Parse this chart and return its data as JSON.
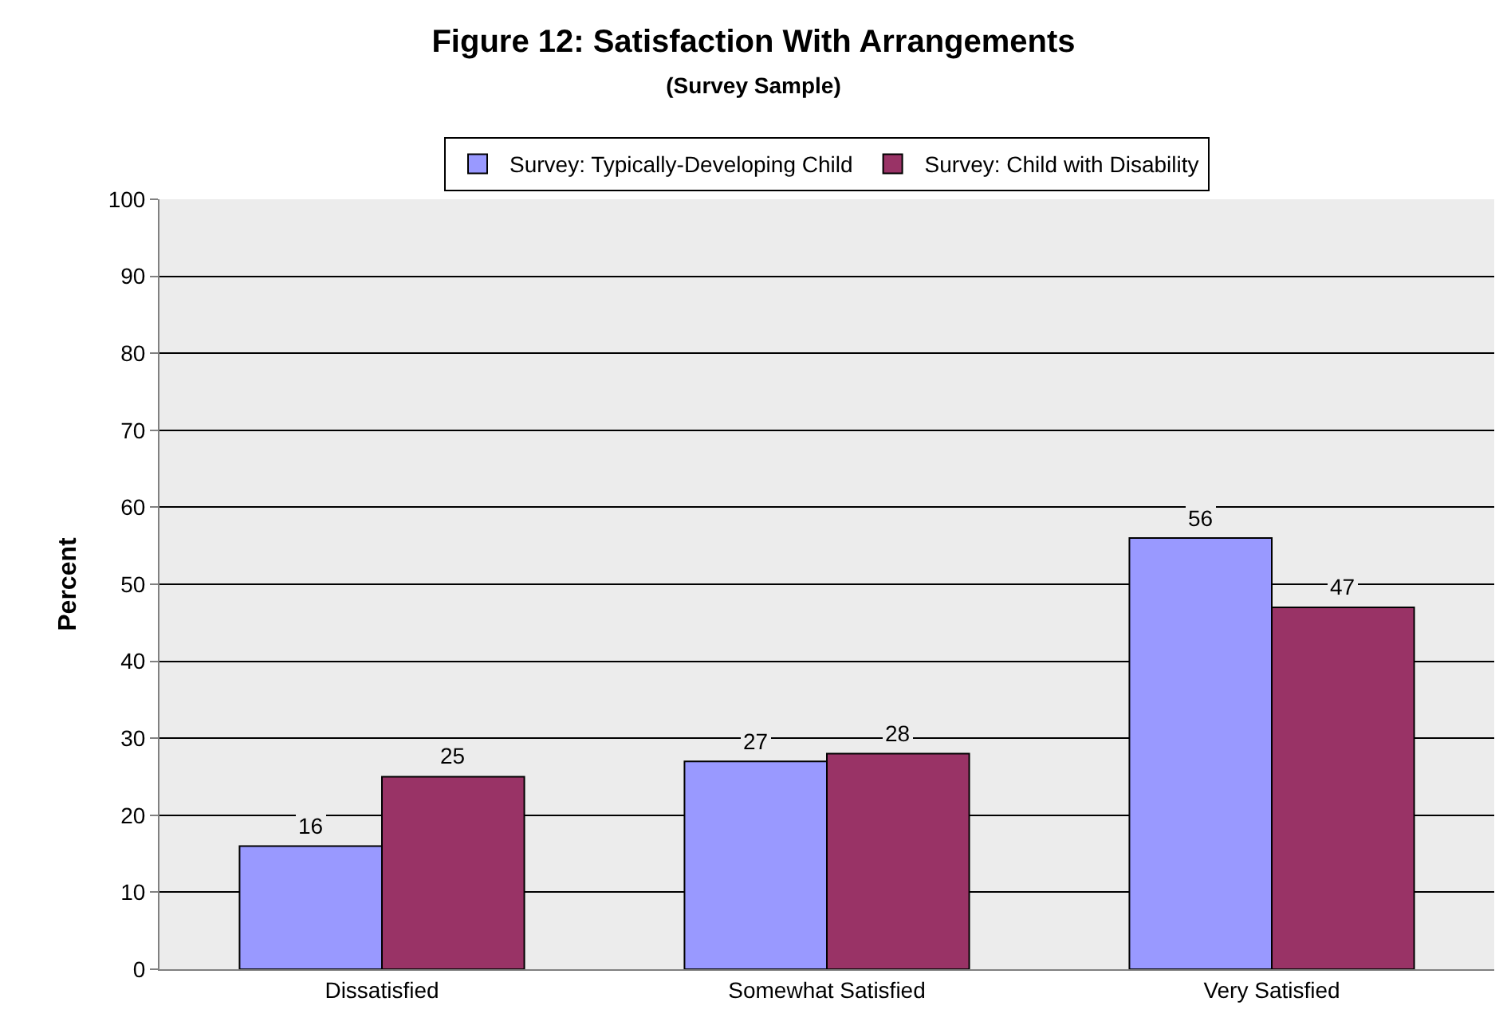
{
  "chart_data": {
    "type": "bar",
    "title": "Figure 12: Satisfaction With Arrangements",
    "subtitle": "(Survey Sample)",
    "ylabel": "Percent",
    "categories": [
      "Dissatisfied",
      "Somewhat Satisfied",
      "Very Satisfied"
    ],
    "series": [
      {
        "name": "Survey: Typically-Developing Child",
        "color": "#9999ff",
        "values": [
          16,
          27,
          56
        ]
      },
      {
        "name": "Survey: Child with Disability",
        "color": "#993366",
        "values": [
          25,
          28,
          47
        ]
      }
    ],
    "ylim": [
      0,
      100
    ],
    "yticks": [
      0,
      10,
      20,
      30,
      40,
      50,
      60,
      70,
      80,
      90,
      100
    ],
    "grid": "y",
    "legend": "top",
    "data_labels": true
  }
}
